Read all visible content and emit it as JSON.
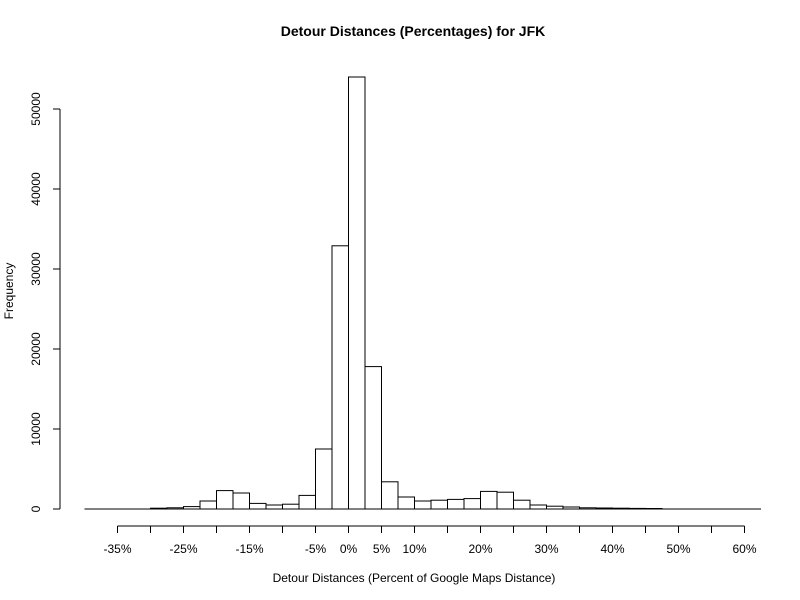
{
  "chart_data": {
    "type": "bar",
    "title": "Detour Distances (Percentages) for JFK",
    "xlabel": "Detour Distances (Percent of Google Maps Distance)",
    "ylabel": "Frequency",
    "x_unit": "percent",
    "bin_width": 2.5,
    "xlim": [
      -40,
      62.5
    ],
    "ylim": [
      0,
      55000
    ],
    "x_ticks": [
      {
        "value": -35,
        "label": "-35%"
      },
      {
        "value": -30,
        "label": ""
      },
      {
        "value": -25,
        "label": "-25%"
      },
      {
        "value": -20,
        "label": ""
      },
      {
        "value": -15,
        "label": "-15%"
      },
      {
        "value": -10,
        "label": ""
      },
      {
        "value": -5,
        "label": "-5%"
      },
      {
        "value": 0,
        "label": "0%"
      },
      {
        "value": 5,
        "label": "5%"
      },
      {
        "value": 10,
        "label": "10%"
      },
      {
        "value": 15,
        "label": ""
      },
      {
        "value": 20,
        "label": "20%"
      },
      {
        "value": 25,
        "label": ""
      },
      {
        "value": 30,
        "label": "30%"
      },
      {
        "value": 35,
        "label": ""
      },
      {
        "value": 40,
        "label": "40%"
      },
      {
        "value": 45,
        "label": ""
      },
      {
        "value": 50,
        "label": "50%"
      },
      {
        "value": 55,
        "label": ""
      },
      {
        "value": 60,
        "label": "60%"
      }
    ],
    "y_ticks": [
      {
        "value": 0,
        "label": "0"
      },
      {
        "value": 10000,
        "label": "10000"
      },
      {
        "value": 20000,
        "label": "20000"
      },
      {
        "value": 30000,
        "label": "30000"
      },
      {
        "value": 40000,
        "label": "40000"
      },
      {
        "value": 50000,
        "label": "50000"
      }
    ],
    "bins": [
      {
        "start": -30.0,
        "count": 100
      },
      {
        "start": -27.5,
        "count": 150
      },
      {
        "start": -25.0,
        "count": 300
      },
      {
        "start": -22.5,
        "count": 1000
      },
      {
        "start": -20.0,
        "count": 2300
      },
      {
        "start": -17.5,
        "count": 2000
      },
      {
        "start": -15.0,
        "count": 700
      },
      {
        "start": -12.5,
        "count": 500
      },
      {
        "start": -10.0,
        "count": 600
      },
      {
        "start": -7.5,
        "count": 1700
      },
      {
        "start": -5.0,
        "count": 7500
      },
      {
        "start": -2.5,
        "count": 32900
      },
      {
        "start": 0.0,
        "count": 54000
      },
      {
        "start": 2.5,
        "count": 17800
      },
      {
        "start": 5.0,
        "count": 3400
      },
      {
        "start": 7.5,
        "count": 1500
      },
      {
        "start": 10.0,
        "count": 1000
      },
      {
        "start": 12.5,
        "count": 1100
      },
      {
        "start": 15.0,
        "count": 1200
      },
      {
        "start": 17.5,
        "count": 1300
      },
      {
        "start": 20.0,
        "count": 2200
      },
      {
        "start": 22.5,
        "count": 2100
      },
      {
        "start": 25.0,
        "count": 1100
      },
      {
        "start": 27.5,
        "count": 500
      },
      {
        "start": 30.0,
        "count": 350
      },
      {
        "start": 32.5,
        "count": 250
      },
      {
        "start": 35.0,
        "count": 150
      },
      {
        "start": 37.5,
        "count": 120
      },
      {
        "start": 40.0,
        "count": 100
      },
      {
        "start": 42.5,
        "count": 80
      },
      {
        "start": 45.0,
        "count": 60
      }
    ]
  }
}
